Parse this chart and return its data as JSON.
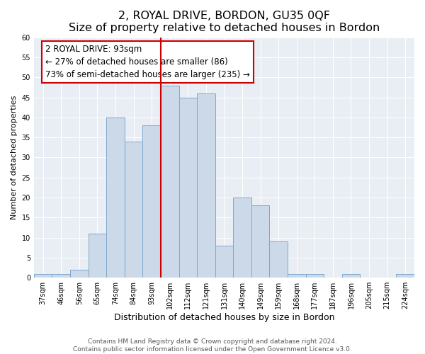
{
  "title": "2, ROYAL DRIVE, BORDON, GU35 0QF",
  "subtitle": "Size of property relative to detached houses in Bordon",
  "xlabel": "Distribution of detached houses by size in Bordon",
  "ylabel": "Number of detached properties",
  "bins": [
    "37sqm",
    "46sqm",
    "56sqm",
    "65sqm",
    "74sqm",
    "84sqm",
    "93sqm",
    "102sqm",
    "112sqm",
    "121sqm",
    "131sqm",
    "140sqm",
    "149sqm",
    "159sqm",
    "168sqm",
    "177sqm",
    "187sqm",
    "196sqm",
    "205sqm",
    "215sqm",
    "224sqm"
  ],
  "values": [
    1,
    1,
    2,
    11,
    40,
    34,
    38,
    48,
    45,
    46,
    8,
    20,
    18,
    9,
    1,
    1,
    0,
    1,
    0,
    0,
    1
  ],
  "bar_color": "#ccd9e8",
  "bar_edge_color": "#7fa8cc",
  "vline_x_index": 6,
  "vline_color": "#cc0000",
  "annotation_title": "2 ROYAL DRIVE: 93sqm",
  "annotation_line1": "← 27% of detached houses are smaller (86)",
  "annotation_line2": "73% of semi-detached houses are larger (235) →",
  "annotation_box_edge_color": "#cc0000",
  "ylim": [
    0,
    60
  ],
  "yticks": [
    0,
    5,
    10,
    15,
    20,
    25,
    30,
    35,
    40,
    45,
    50,
    55,
    60
  ],
  "footnote1": "Contains HM Land Registry data © Crown copyright and database right 2024.",
  "footnote2": "Contains public sector information licensed under the Open Government Licence v3.0.",
  "bg_color": "#e8eef4",
  "grid_color": "#ffffff",
  "title_fontsize": 11.5,
  "subtitle_fontsize": 9.5,
  "xlabel_fontsize": 9,
  "ylabel_fontsize": 8,
  "tick_fontsize": 7,
  "footnote_fontsize": 6.5,
  "annotation_fontsize": 8.5
}
